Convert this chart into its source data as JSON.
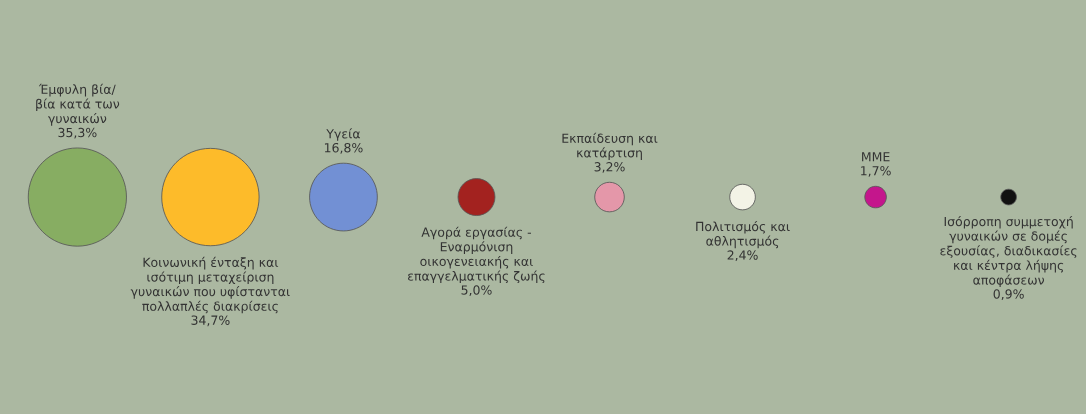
{
  "chart_data": {
    "type": "other",
    "categories": [
      "Έμφυλη βία/\nβία κατά των\nγυναικών",
      "Κοινωνική ένταξη και\nισότιμη μεταχείριση\nγυναικών που υφίστανται\nπολλαπλές διακρίσεις",
      "Υγεία",
      "Αγορά εργασίας -\nΕναρμόνιση\nοικογενειακής και\nεπαγγελματικής ζωής",
      "Εκπαίδευση και\nκατάρτιση",
      "Πολιτισμός και\nαθλητισμός",
      "ΜΜΕ",
      "Ισόρροπη συμμετοχή\nγυναικών σε δομές\nεξουσίας, διαδικασίες\nκαι κέντρα λήψης\nαποφάσεων"
    ],
    "values": [
      35.3,
      34.7,
      16.8,
      5.0,
      3.2,
      2.4,
      1.7,
      0.9
    ],
    "value_labels": [
      "35,3%",
      "34,7%",
      "16,8%",
      "5,0%",
      "3,2%",
      "2,4%",
      "1,7%",
      "0,9%"
    ],
    "colors": [
      "#87ad62",
      "#fdbb2a",
      "#7290d4",
      "#a3221f",
      "#e497a9",
      "#f3f3e6",
      "#c4168c",
      "#111111"
    ]
  }
}
